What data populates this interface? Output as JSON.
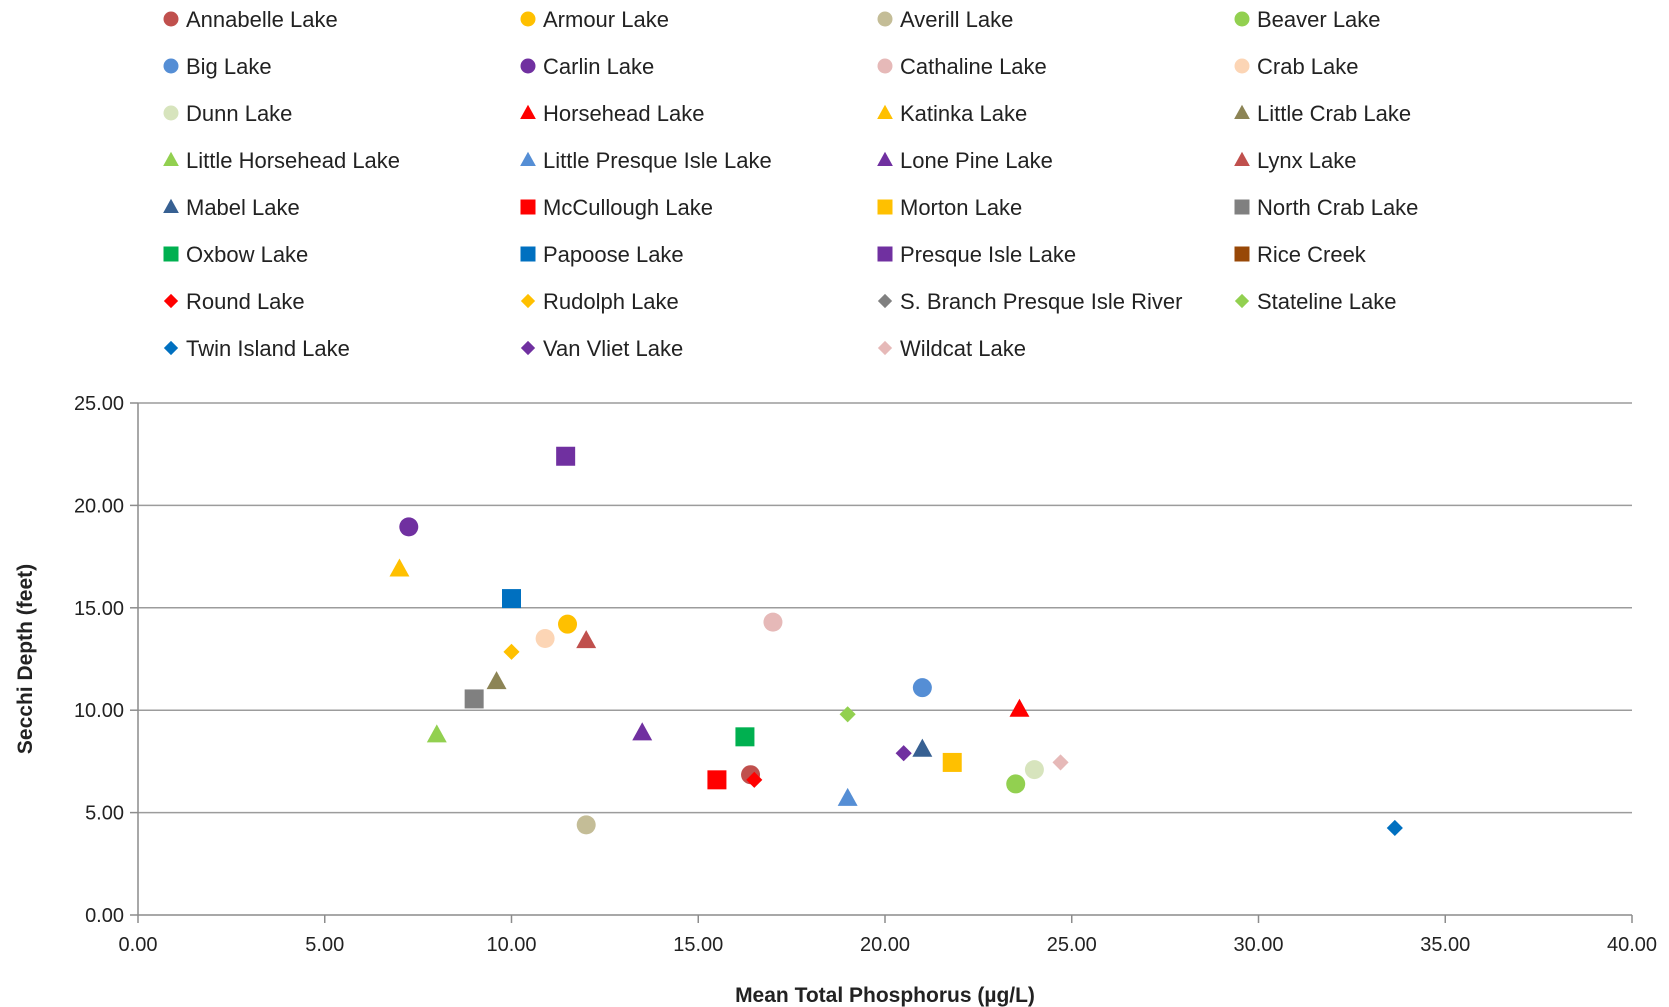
{
  "chart_data": {
    "type": "scatter",
    "title": "",
    "xlabel": "Mean Total Phosphorus (µg/L)",
    "ylabel": "Secchi Depth (feet)",
    "xlim": [
      0,
      40
    ],
    "ylim": [
      0,
      25
    ],
    "x_ticks": [
      0,
      5,
      10,
      15,
      20,
      25,
      30,
      35,
      40
    ],
    "y_ticks": [
      0,
      5,
      10,
      15,
      20,
      25
    ],
    "x_tick_labels": [
      "0.00",
      "5.00",
      "10.00",
      "15.00",
      "20.00",
      "25.00",
      "30.00",
      "35.00",
      "40.00"
    ],
    "y_tick_labels": [
      "0.00",
      "5.00",
      "10.00",
      "15.00",
      "20.00",
      "25.00"
    ],
    "grid": "horizontal",
    "legend_position": "top",
    "series": [
      {
        "name": "Annabelle Lake",
        "marker": "circle",
        "color": "#c0504d",
        "x": 16.4,
        "y": 6.85
      },
      {
        "name": "Armour Lake",
        "marker": "circle",
        "color": "#ffc000",
        "x": 11.5,
        "y": 14.2
      },
      {
        "name": "Averill Lake",
        "marker": "circle",
        "color": "#c4bd97",
        "x": 12.0,
        "y": 4.4
      },
      {
        "name": "Beaver Lake",
        "marker": "circle",
        "color": "#92d050",
        "x": 23.5,
        "y": 6.4
      },
      {
        "name": "Big Lake",
        "marker": "circle",
        "color": "#558ed5",
        "x": 21.0,
        "y": 11.1
      },
      {
        "name": "Carlin Lake",
        "marker": "circle",
        "color": "#7030a0",
        "x": 7.25,
        "y": 18.95
      },
      {
        "name": "Cathaline Lake",
        "marker": "circle",
        "color": "#e6b9b8",
        "x": 17.0,
        "y": 14.3
      },
      {
        "name": "Crab Lake",
        "marker": "circle",
        "color": "#fcd5b5",
        "x": 10.9,
        "y": 13.5
      },
      {
        "name": "Dunn Lake",
        "marker": "circle",
        "color": "#d7e4bd",
        "x": 24.0,
        "y": 7.1
      },
      {
        "name": "Horsehead Lake",
        "marker": "triangle",
        "color": "#ff0000",
        "x": 23.6,
        "y": 10.05
      },
      {
        "name": "Katinka Lake",
        "marker": "triangle",
        "color": "#ffc000",
        "x": 7.0,
        "y": 16.9
      },
      {
        "name": "Little Crab Lake",
        "marker": "triangle",
        "color": "#8c8455",
        "x": 9.6,
        "y": 11.4
      },
      {
        "name": "Little Horsehead Lake",
        "marker": "triangle",
        "color": "#92d050",
        "x": 8.0,
        "y": 8.8
      },
      {
        "name": "Little Presque Isle Lake",
        "marker": "triangle",
        "color": "#558ed5",
        "x": 19.0,
        "y": 5.7
      },
      {
        "name": "Lone Pine Lake",
        "marker": "triangle",
        "color": "#7030a0",
        "x": 13.5,
        "y": 8.9
      },
      {
        "name": "Lynx Lake",
        "marker": "triangle",
        "color": "#c0504d",
        "x": 12.0,
        "y": 13.4
      },
      {
        "name": "Mabel Lake",
        "marker": "triangle",
        "color": "#376092",
        "x": 21.0,
        "y": 8.1
      },
      {
        "name": "McCullough Lake",
        "marker": "square",
        "color": "#ff0000",
        "x": 15.5,
        "y": 6.6
      },
      {
        "name": "Morton Lake",
        "marker": "square",
        "color": "#ffc000",
        "x": 21.8,
        "y": 7.45
      },
      {
        "name": "North Crab Lake",
        "marker": "square",
        "color": "#808080",
        "x": 9.0,
        "y": 10.55
      },
      {
        "name": "Oxbow Lake",
        "marker": "square",
        "color": "#00b050",
        "x": 16.25,
        "y": 8.7
      },
      {
        "name": "Papoose Lake",
        "marker": "square",
        "color": "#0070c0",
        "x": 10.0,
        "y": 15.45
      },
      {
        "name": "Presque Isle Lake",
        "marker": "square",
        "color": "#7030a0",
        "x": 11.45,
        "y": 22.4
      },
      {
        "name": "Rice Creek",
        "marker": "square",
        "color": "#984807",
        "x": null,
        "y": null
      },
      {
        "name": "Round Lake",
        "marker": "diamond",
        "color": "#ff0000",
        "x": 16.5,
        "y": 6.6
      },
      {
        "name": "Rudolph Lake",
        "marker": "diamond",
        "color": "#ffc000",
        "x": 10.0,
        "y": 12.85
      },
      {
        "name": "S. Branch Presque Isle River",
        "marker": "diamond",
        "color": "#808080",
        "x": null,
        "y": null
      },
      {
        "name": "Stateline Lake",
        "marker": "diamond",
        "color": "#92d050",
        "x": 19.0,
        "y": 9.8
      },
      {
        "name": "Twin Island Lake",
        "marker": "diamond",
        "color": "#0070c0",
        "x": 33.65,
        "y": 4.25
      },
      {
        "name": "Van Vliet Lake",
        "marker": "diamond",
        "color": "#7030a0",
        "x": 20.5,
        "y": 7.9
      },
      {
        "name": "Wildcat Lake",
        "marker": "diamond",
        "color": "#e6b9b8",
        "x": 24.7,
        "y": 7.45
      }
    ]
  },
  "style": {
    "grid_color": "#9c9c9c",
    "axis_color": "#8c8c8c",
    "text_color": "#222222"
  }
}
